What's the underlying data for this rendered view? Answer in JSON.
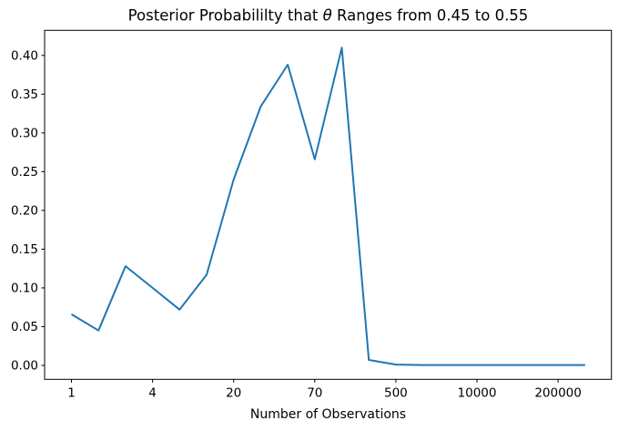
{
  "chart_data": {
    "type": "line",
    "title": "Posterior Probabililty that θ Ranges from 0.45 to 0.55",
    "title_parts": [
      "Posterior Probabililty that ",
      "θ",
      " Ranges from 0.45 to 0.55"
    ],
    "xlabel": "Number of Observations",
    "ylabel": "",
    "x_tick_labels": [
      "1",
      "4",
      "20",
      "70",
      "500",
      "10000",
      "200000"
    ],
    "x_tick_indices": [
      0,
      3,
      6,
      9,
      12,
      15,
      18
    ],
    "y_tick_labels": [
      "0.00",
      "0.05",
      "0.10",
      "0.15",
      "0.20",
      "0.25",
      "0.30",
      "0.35",
      "0.40"
    ],
    "x_scale_note": "points evenly spaced by index; tick labels show observation counts",
    "x_index": [
      0,
      1,
      2,
      3,
      4,
      5,
      6,
      7,
      8,
      9,
      10,
      11,
      12,
      13,
      14,
      15,
      16,
      17,
      18,
      19
    ],
    "values": [
      0.066,
      0.045,
      0.128,
      0.1,
      0.072,
      0.117,
      0.24,
      0.334,
      0.388,
      0.266,
      0.41,
      0.007,
      0.001,
      0.0005,
      0.0005,
      0.0005,
      0.0005,
      0.0005,
      0.0005,
      0.0005
    ],
    "ylim": [
      -0.018,
      0.433
    ],
    "grid": false,
    "legend": null,
    "line_color": "#1f77b4",
    "background_color": "#ffffff",
    "spine_color": "#000000"
  }
}
